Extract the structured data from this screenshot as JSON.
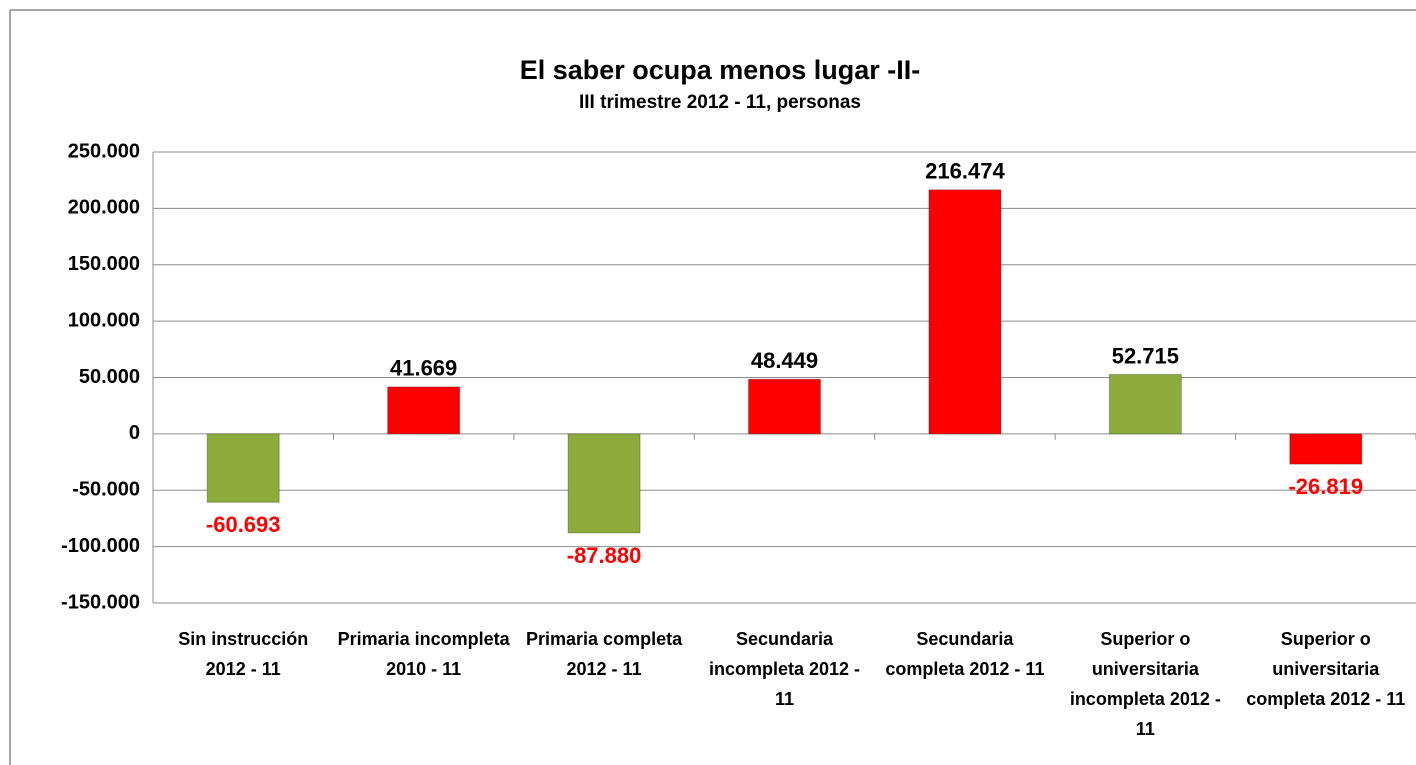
{
  "chart_data": {
    "type": "bar",
    "title": "El saber ocupa menos lugar -II-",
    "subtitle": "III trimestre 2012 - 11, personas",
    "categories": [
      "Sin instrucción 2012 - 11",
      "Primaria incompleta 2010 - 11",
      "Primaria completa 2012 - 11",
      "Secundaria incompleta 2012 - 11",
      "Secundaria completa 2012 - 11",
      "Superior o universitaria incompleta 2012 - 11",
      "Superior o universitaria completa 2012 - 11"
    ],
    "values": [
      -60693,
      41669,
      -87880,
      48449,
      216474,
      52715,
      -26819
    ],
    "value_labels": [
      "-60.693",
      "41.669",
      "-87.880",
      "48.449",
      "216.474",
      "52.715",
      "-26.819"
    ],
    "colors": [
      "#8cab3a",
      "#ff0000",
      "#8cab3a",
      "#ff0000",
      "#ff0000",
      "#8cab3a",
      "#ff0000"
    ],
    "negative_label_color": "#ff0000",
    "ylim": [
      -150000,
      250000
    ],
    "yticks": [
      {
        "value": -150000,
        "label": "-150.000"
      },
      {
        "value": -100000,
        "label": "-100.000"
      },
      {
        "value": -50000,
        "label": "-50.000"
      },
      0,
      {
        "value": 50000,
        "label": "50.000"
      },
      {
        "value": 100000,
        "label": "100.000"
      },
      {
        "value": 150000,
        "label": "150.000"
      },
      {
        "value": 200000,
        "label": "200.000"
      },
      {
        "value": 250000,
        "label": "250.000"
      }
    ],
    "grid": true
  }
}
